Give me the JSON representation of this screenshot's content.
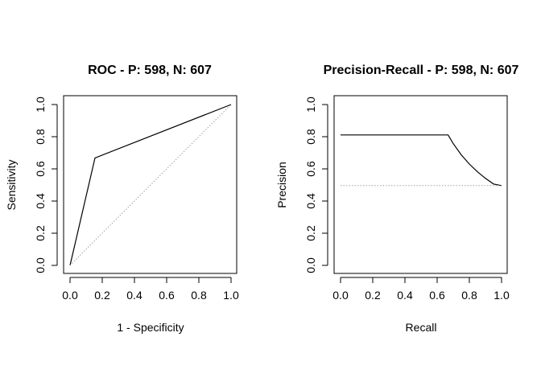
{
  "chart_data": [
    {
      "type": "line",
      "title": "ROC - P: 598, N: 607",
      "xlabel": "1 - Specificity",
      "ylabel": "Sensitivity",
      "xlim": [
        0,
        1
      ],
      "ylim": [
        0,
        1
      ],
      "xticks": [
        "0.0",
        "0.2",
        "0.4",
        "0.6",
        "0.8",
        "1.0"
      ],
      "yticks": [
        "0.0",
        "0.2",
        "0.4",
        "0.6",
        "0.8",
        "1.0"
      ],
      "grid": false,
      "series": [
        {
          "style": "solid",
          "color": "#000000",
          "x": [
            0,
            0.155,
            1.0
          ],
          "y": [
            0,
            0.668,
            1.0
          ]
        },
        {
          "style": "dotted",
          "color": "#a0a0a0",
          "x": [
            0,
            1
          ],
          "y": [
            0,
            1
          ]
        }
      ]
    },
    {
      "type": "line",
      "title": "Precision-Recall - P: 598, N: 607",
      "xlabel": "Recall",
      "ylabel": "Precision",
      "xlim": [
        0,
        1
      ],
      "ylim": [
        0,
        1
      ],
      "xticks": [
        "0.0",
        "0.2",
        "0.4",
        "0.6",
        "0.8",
        "1.0"
      ],
      "yticks": [
        "0.0",
        "0.2",
        "0.4",
        "0.6",
        "0.8",
        "1.0"
      ],
      "grid": false,
      "series": [
        {
          "style": "solid",
          "color": "#000000",
          "x": [
            0,
            0.668,
            0.7,
            0.75,
            0.8,
            0.85,
            0.9,
            0.95,
            1.0
          ],
          "y": [
            0.811,
            0.811,
            0.757,
            0.687,
            0.63,
            0.582,
            0.541,
            0.506,
            0.496
          ]
        },
        {
          "style": "dotted",
          "color": "#a0a0a0",
          "x": [
            0,
            1
          ],
          "y": [
            0.496,
            0.496
          ]
        }
      ]
    }
  ]
}
